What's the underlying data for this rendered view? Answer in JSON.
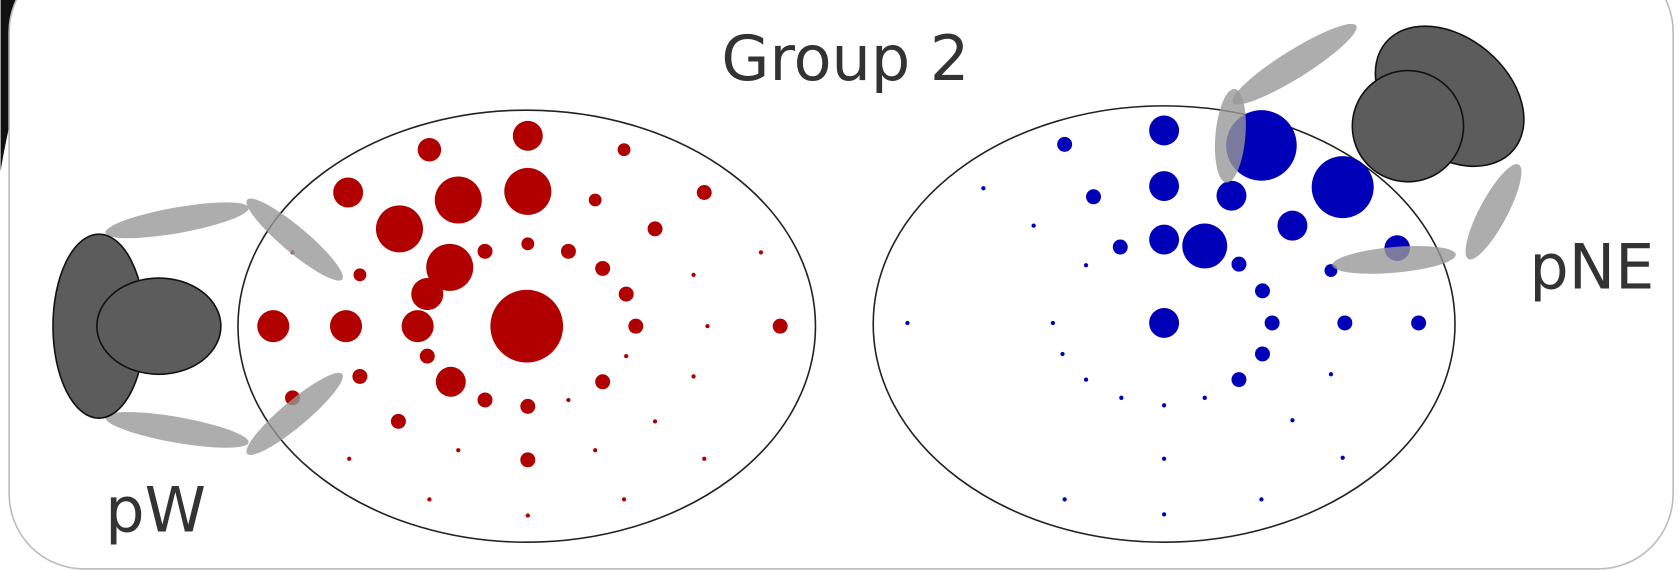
{
  "title": "Group 2",
  "labels": {
    "left": "pW",
    "right": "pNE"
  }
}
